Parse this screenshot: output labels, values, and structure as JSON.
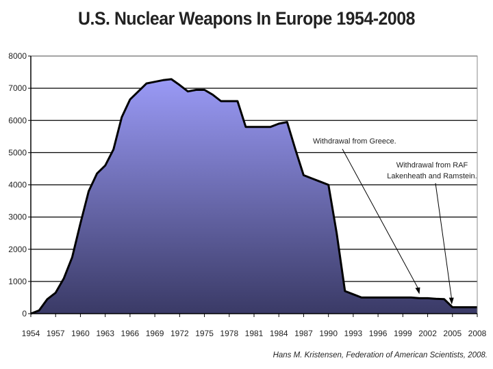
{
  "chart_data": {
    "type": "area",
    "title": "U.S. Nuclear Weapons In Europe 1954-2008",
    "xlabel": "",
    "ylabel": "",
    "ylim": [
      0,
      8000
    ],
    "xlim": [
      1954,
      2008
    ],
    "y_ticks": [
      0,
      1000,
      2000,
      3000,
      4000,
      5000,
      6000,
      7000,
      8000
    ],
    "y_tick_labels": [
      "0",
      "1000",
      "2000",
      "3000",
      "4000",
      "5000",
      "6000",
      "7000",
      "8000"
    ],
    "x_ticks": [
      1954,
      1957,
      1960,
      1963,
      1966,
      1969,
      1972,
      1975,
      1978,
      1981,
      1984,
      1987,
      1990,
      1993,
      1996,
      1999,
      2002,
      2005,
      2008
    ],
    "x_tick_labels": [
      "1954",
      "1957",
      "1960",
      "1963",
      "1966",
      "1969",
      "1972",
      "1975",
      "1978",
      "1981",
      "1984",
      "1987",
      "1990",
      "1993",
      "1996",
      "1999",
      "2002",
      "2005",
      "2008"
    ],
    "grid": true,
    "fill_top_color": "#9a9af6",
    "fill_bottom_color": "#3a3a66",
    "series": [
      {
        "x": [
          1954,
          1955,
          1956,
          1957,
          1958,
          1959,
          1960,
          1961,
          1962,
          1963,
          1964,
          1965,
          1966,
          1967,
          1968,
          1969,
          1970,
          1971,
          1972,
          1973,
          1974,
          1975,
          1976,
          1977,
          1978,
          1979,
          1980,
          1981,
          1982,
          1983,
          1984,
          1985,
          1986,
          1987,
          1988,
          1989,
          1990,
          1991,
          1992,
          1993,
          1994,
          1995,
          1996,
          1997,
          1998,
          1999,
          2000,
          2001,
          2002,
          2003,
          2004,
          2005,
          2006,
          2007,
          2008
        ],
        "values": [
          0,
          100,
          450,
          650,
          1100,
          1750,
          2800,
          3800,
          4350,
          4600,
          5100,
          6100,
          6650,
          6900,
          7150,
          7200,
          7250,
          7280,
          7100,
          6900,
          6950,
          6950,
          6800,
          6600,
          6600,
          6600,
          5800,
          5800,
          5800,
          5800,
          5900,
          5950,
          5100,
          4300,
          4200,
          4100,
          4000,
          2500,
          700,
          600,
          500,
          500,
          500,
          500,
          500,
          500,
          500,
          480,
          480,
          460,
          450,
          200,
          200,
          200,
          200
        ]
      }
    ],
    "annotations": [
      {
        "text": "Withdrawal from Greece.",
        "x": 2001,
        "y": 500
      },
      {
        "text_lines": [
          "Withdrawal from RAF",
          "Lakenheath and Ramstein."
        ],
        "x": 2005,
        "y": 220
      }
    ],
    "source_credit": "Hans M. Kristensen, Federation of American Scientists, 2008."
  }
}
